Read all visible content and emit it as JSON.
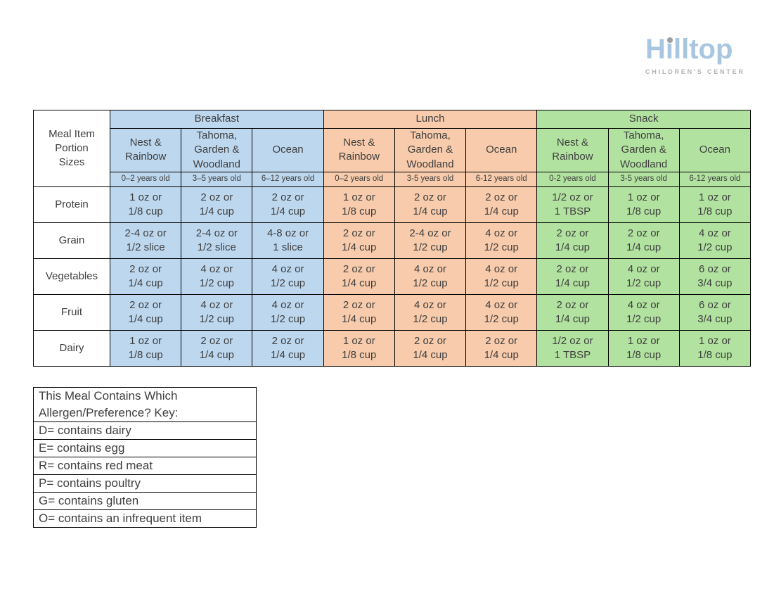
{
  "logo": {
    "wordmark": "Hilltop",
    "subtitle": "CHILDREN'S CENTER"
  },
  "colors": {
    "breakfast": "#BDD7EE",
    "lunch": "#F7CBAB",
    "snack": "#B2E2A0",
    "text": "#3F3F3F",
    "logo-blue": "#A9C6E0",
    "logo-gray": "#B3B3B3",
    "logo-dot": "#9EA0A3"
  },
  "table": {
    "corner_label": "Meal Item\nPortion\nSizes",
    "meals": [
      {
        "name": "Breakfast",
        "rooms": [
          "Nest &\nRainbow",
          "Tahoma,\nGarden &\nWoodland",
          "Ocean"
        ],
        "ages": [
          "0–2 years old",
          "3–5 years old",
          "6–12 years old"
        ]
      },
      {
        "name": "Lunch",
        "rooms": [
          "Nest &\nRainbow",
          "Tahoma,\nGarden &\nWoodland",
          "Ocean"
        ],
        "ages": [
          "0–2 years old",
          "3-5 years old",
          "6-12 years old"
        ]
      },
      {
        "name": "Snack",
        "rooms": [
          "Nest &\nRainbow",
          "Tahoma,\nGarden &\nWoodland",
          "Ocean"
        ],
        "ages": [
          "0-2 years old",
          "3-5 years old",
          "6-12 years old"
        ]
      }
    ],
    "rows": [
      {
        "label": "Protein",
        "values": [
          "1 oz or\n1/8 cup",
          "2 oz or\n1/4 cup",
          "2 oz or\n1/4 cup",
          "1 oz or\n1/8 cup",
          "2 oz or\n1/4 cup",
          "2 oz or\n1/4 cup",
          "1/2 oz or\n1 TBSP",
          "1 oz or\n1/8 cup",
          "1 oz or\n1/8 cup"
        ]
      },
      {
        "label": "Grain",
        "values": [
          "2-4 oz or\n1/2 slice",
          "2-4 oz or\n1/2 slice",
          "4-8 oz or\n1 slice",
          "2 oz or\n1/4 cup",
          "2-4 oz or\n1/2 cup",
          "4 oz or\n1/2 cup",
          "2 oz or\n1/4 cup",
          "2 oz or\n1/4 cup",
          "4 oz or\n1/2 cup"
        ]
      },
      {
        "label": "Vegetables",
        "values": [
          "2 oz or\n1/4 cup",
          "4 oz or\n1/2 cup",
          "4 oz or\n1/2 cup",
          "2 oz or\n1/4 cup",
          "4 oz or\n1/2 cup",
          "4 oz or\n1/2 cup",
          "2 oz or\n1/4 cup",
          "4 oz or\n1/2 cup",
          "6 oz or\n3/4 cup"
        ]
      },
      {
        "label": "Fruit",
        "values": [
          "2 oz or\n1/4 cup",
          "4 oz or\n1/2 cup",
          "4 oz or\n1/2 cup",
          "2 oz or\n1/4 cup",
          "4 oz or\n1/2 cup",
          "4 oz or\n1/2 cup",
          "2 oz or\n1/4 cup",
          "4 oz or\n1/2 cup",
          "6 oz or\n3/4 cup"
        ]
      },
      {
        "label": "Dairy",
        "values": [
          "1 oz or\n1/8 cup",
          "2 oz or\n1/4 cup",
          "2 oz or\n1/4 cup",
          "1 oz or\n1/8 cup",
          "2 oz or\n1/4 cup",
          "2 oz or\n1/4 cup",
          "1/2 oz or\n1 TBSP",
          "1 oz or\n1/8 cup",
          "1 oz or\n1/8 cup"
        ]
      }
    ]
  },
  "key": {
    "title": "This Meal Contains Which\nAllergen/Preference? Key:",
    "items": [
      "D= contains dairy",
      "E= contains egg",
      "R= contains red meat",
      "P= contains poultry",
      "G= contains gluten",
      "O= contains an infrequent item"
    ]
  }
}
